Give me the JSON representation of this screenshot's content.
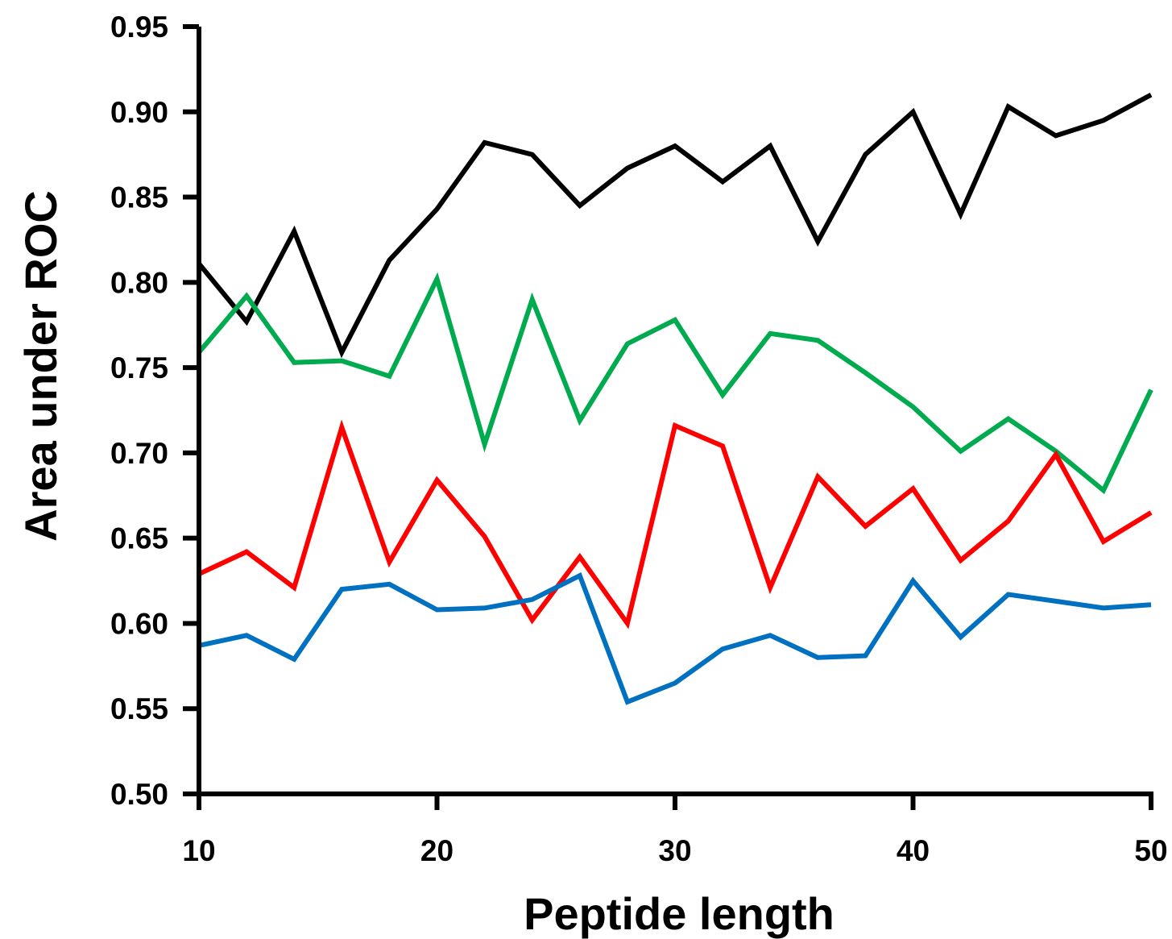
{
  "chart_data": {
    "type": "line",
    "title": "",
    "xlabel": "Peptide length",
    "ylabel": "Area under ROC",
    "xlim": [
      10,
      50
    ],
    "ylim": [
      0.5,
      0.95
    ],
    "x_ticks": [
      10,
      20,
      30,
      40,
      50
    ],
    "x_tick_labels": [
      "10",
      "20",
      "30",
      "40",
      "50"
    ],
    "y_ticks": [
      0.5,
      0.55,
      0.6,
      0.65,
      0.7,
      0.75,
      0.8,
      0.85,
      0.9,
      0.95
    ],
    "y_tick_labels": [
      "0.50",
      "0.55",
      "0.60",
      "0.65",
      "0.70",
      "0.75",
      "0.80",
      "0.85",
      "0.90",
      "0.95"
    ],
    "grid": false,
    "legend": "none",
    "x": [
      10,
      12,
      14,
      16,
      18,
      20,
      22,
      24,
      26,
      28,
      30,
      32,
      34,
      36,
      38,
      40,
      42,
      44,
      46,
      48,
      50
    ],
    "series": [
      {
        "color": "#000000",
        "values": [
          0.811,
          0.777,
          0.83,
          0.759,
          0.813,
          0.843,
          0.882,
          0.875,
          0.845,
          0.867,
          0.88,
          0.859,
          0.88,
          0.824,
          0.875,
          0.9,
          0.84,
          0.903,
          0.886,
          0.895,
          0.91
        ]
      },
      {
        "color": "#00aa4f",
        "values": [
          0.759,
          0.792,
          0.753,
          0.754,
          0.745,
          0.802,
          0.705,
          0.79,
          0.719,
          0.764,
          0.778,
          0.734,
          0.77,
          0.766,
          0.747,
          0.727,
          0.701,
          0.72,
          0.701,
          0.678,
          0.737
        ]
      },
      {
        "color": "#ff0000",
        "values": [
          0.629,
          0.642,
          0.621,
          0.715,
          0.636,
          0.684,
          0.651,
          0.602,
          0.639,
          0.6,
          0.716,
          0.704,
          0.621,
          0.686,
          0.657,
          0.679,
          0.637,
          0.66,
          0.699,
          0.648,
          0.665
        ]
      },
      {
        "color": "#0070c0",
        "values": [
          0.587,
          0.593,
          0.579,
          0.62,
          0.623,
          0.608,
          0.609,
          0.614,
          0.628,
          0.554,
          0.565,
          0.585,
          0.593,
          0.58,
          0.581,
          0.625,
          0.592,
          0.617,
          0.613,
          0.609,
          0.611
        ]
      }
    ]
  }
}
